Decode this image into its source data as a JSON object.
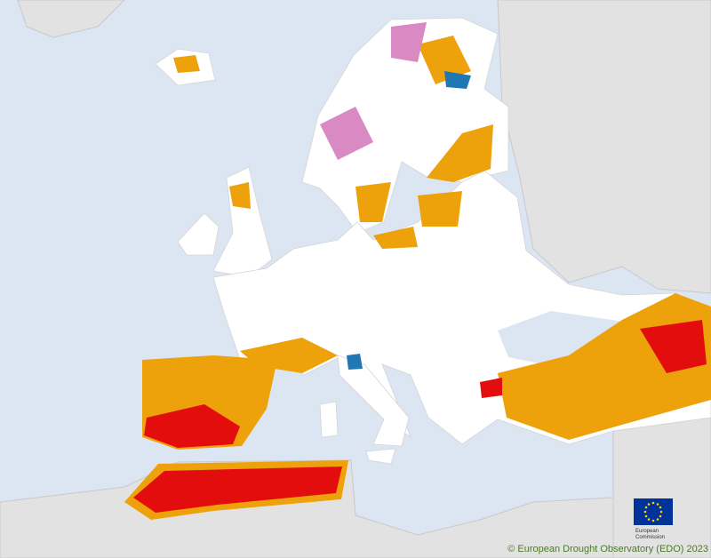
{
  "logo": {
    "line1": "European",
    "line2": "Commission"
  },
  "footer": {
    "copyright": "© European Drought Observatory (EDO) 2023"
  }
}
